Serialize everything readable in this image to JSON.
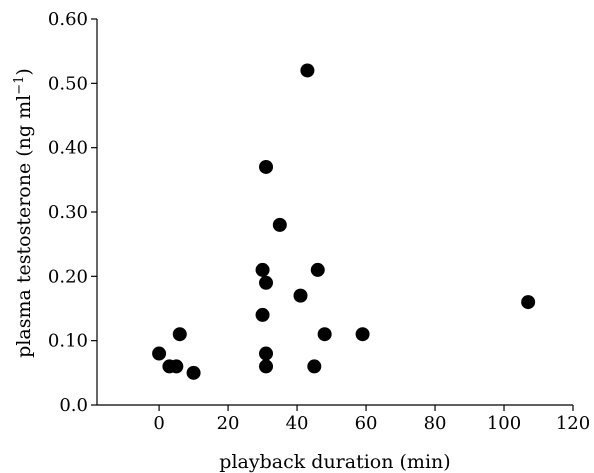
{
  "chart_data": {
    "type": "scatter",
    "title": "",
    "xlabel": "playback duration (min)",
    "ylabel": {
      "text": "plasma testosterone (ng ml",
      "superscript": "−1",
      "suffix": ")"
    },
    "xlim": [
      -18,
      120
    ],
    "ylim": [
      0,
      0.6
    ],
    "xticks": [
      0,
      20,
      40,
      60,
      80,
      100,
      120
    ],
    "xtick_labels": [
      "0",
      "20",
      "40",
      "60",
      "80",
      "100",
      "120"
    ],
    "yticks": [
      0,
      0.1,
      0.2,
      0.3,
      0.4,
      0.5,
      0.6
    ],
    "ytick_labels": [
      "0.0",
      "0.10",
      "0.20",
      "0.30",
      "0.40",
      "0.50",
      "0.60"
    ],
    "grid": false,
    "marker_color": "#000000",
    "points": [
      {
        "x": 0,
        "y": 0.08
      },
      {
        "x": 3,
        "y": 0.06
      },
      {
        "x": 5,
        "y": 0.06
      },
      {
        "x": 6,
        "y": 0.11
      },
      {
        "x": 10,
        "y": 0.05
      },
      {
        "x": 30,
        "y": 0.21
      },
      {
        "x": 30,
        "y": 0.14
      },
      {
        "x": 31,
        "y": 0.37
      },
      {
        "x": 31,
        "y": 0.19
      },
      {
        "x": 31,
        "y": 0.08
      },
      {
        "x": 31,
        "y": 0.06
      },
      {
        "x": 35,
        "y": 0.28
      },
      {
        "x": 41,
        "y": 0.17
      },
      {
        "x": 43,
        "y": 0.52
      },
      {
        "x": 45,
        "y": 0.06
      },
      {
        "x": 46,
        "y": 0.21
      },
      {
        "x": 48,
        "y": 0.11
      },
      {
        "x": 59,
        "y": 0.11
      },
      {
        "x": 107,
        "y": 0.16
      }
    ]
  }
}
